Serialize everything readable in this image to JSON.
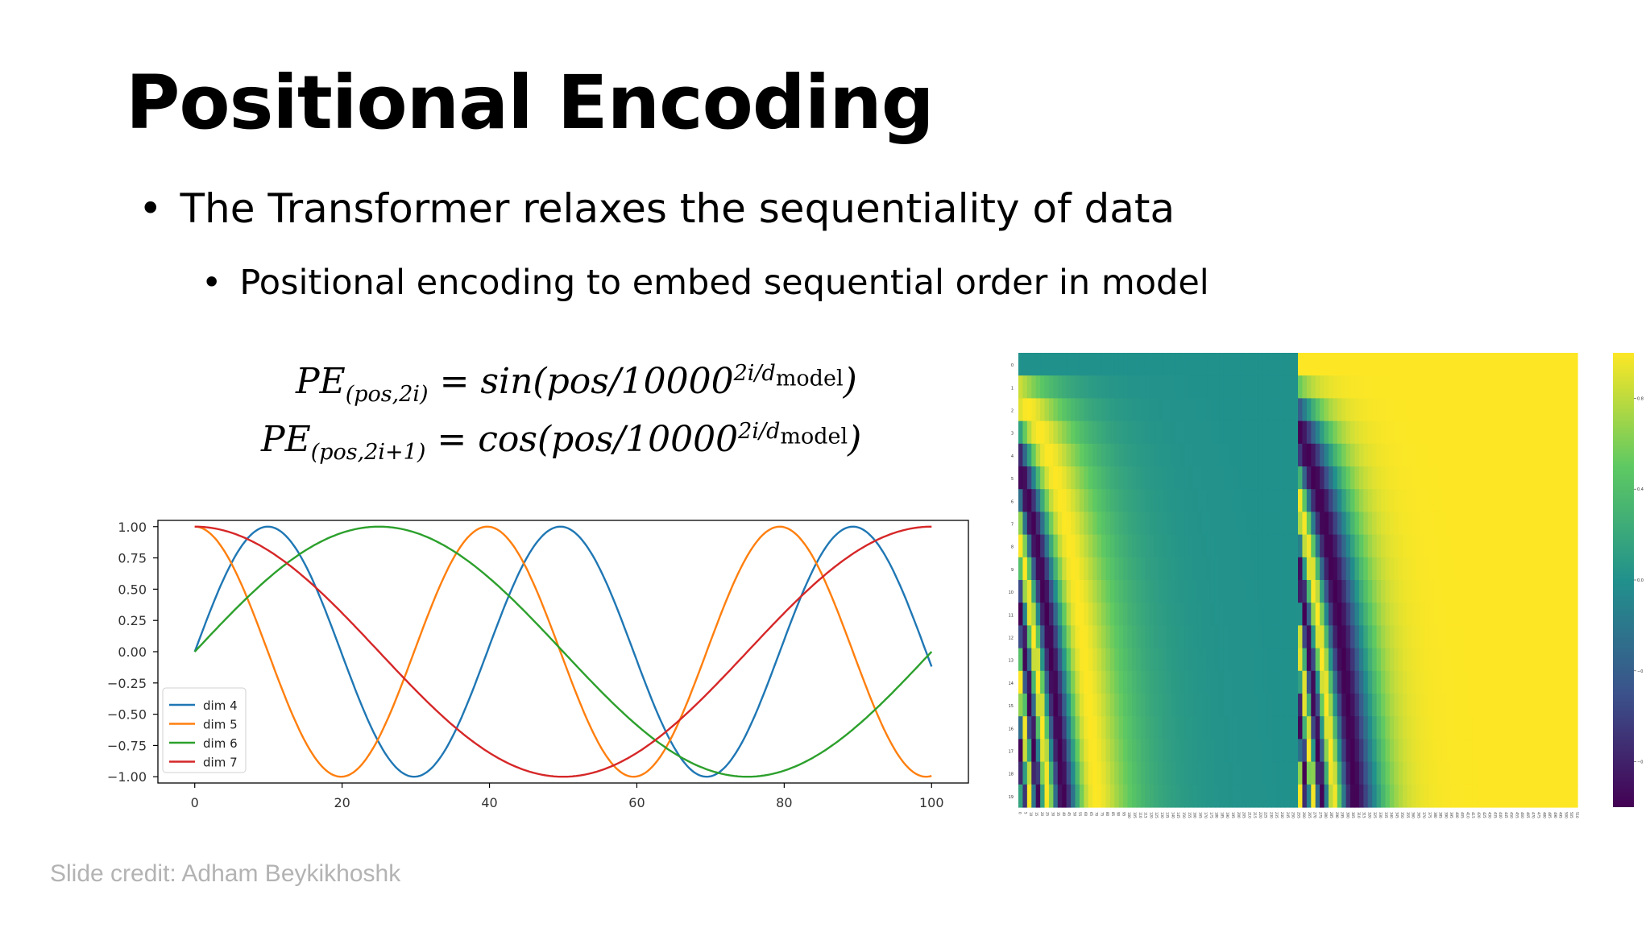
{
  "slide": {
    "title": "Positional Encoding",
    "bullet1": "The Transformer relaxes the sequentiality of data",
    "bullet2": "Positional encoding to embed sequential order in model",
    "bullet_symbol": "•",
    "credit": "Slide credit: Adham Beykikhoshk"
  },
  "formulas": {
    "f1": {
      "lhs": "PE",
      "sub": "(pos,2i)",
      "rhs": " = sin(pos/10000",
      "exp": "2i/d",
      "exp_sub": "model",
      "close": ")"
    },
    "f2": {
      "lhs": "PE",
      "sub": "(pos,2i+1)",
      "rhs": " = cos(pos/10000",
      "exp": "2i/d",
      "exp_sub": "model",
      "close": ")"
    }
  },
  "chart_data": [
    {
      "type": "line",
      "x_range": [
        0,
        100
      ],
      "xlim": [
        -5,
        105
      ],
      "ylim": [
        -1.05,
        1.05
      ],
      "x_ticks": [
        0,
        20,
        40,
        60,
        80,
        100
      ],
      "y_ticks": [
        1.0,
        0.75,
        0.5,
        0.25,
        0.0,
        -0.25,
        -0.5,
        -0.75,
        -1.0
      ],
      "y_tick_labels": [
        "1.00",
        "0.75",
        "0.50",
        "0.25",
        "0.00",
        "−0.25",
        "−0.50",
        "−0.75",
        "−1.00"
      ],
      "grid": false,
      "legend_position": "lower-left",
      "series": [
        {
          "name": "dim 4",
          "function": "sin",
          "period": 39.7,
          "color": "#1f77b4"
        },
        {
          "name": "dim 5",
          "function": "cos",
          "period": 39.7,
          "color": "#ff7f0e"
        },
        {
          "name": "dim 6",
          "function": "sin",
          "period": 100.0,
          "color": "#2ca02c"
        },
        {
          "name": "dim 7",
          "function": "cos",
          "period": 100.0,
          "color": "#d62728"
        }
      ]
    },
    {
      "type": "heatmap",
      "rows": 20,
      "columns": 512,
      "row_tick_labels": [
        "0",
        "1",
        "2",
        "3",
        "4",
        "5",
        "6",
        "7",
        "8",
        "9",
        "10",
        "11",
        "12",
        "13",
        "14",
        "15",
        "16",
        "17",
        "18",
        "19"
      ],
      "colormap": "viridis",
      "colorbar_ticks": [
        "0.8",
        "0.4",
        "0.0",
        "−0.4",
        "−0.8"
      ],
      "value_range": [
        -1,
        1
      ],
      "layout_note": "left half sin, right half cos"
    }
  ],
  "colors": {
    "axis": "#000000",
    "tick_text": "#333333",
    "credit": "#b3b3b3"
  }
}
